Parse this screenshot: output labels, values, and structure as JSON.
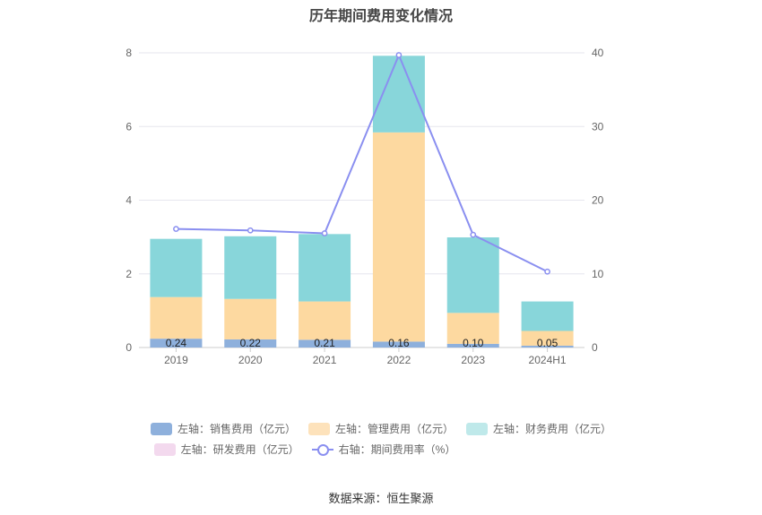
{
  "chart_data": {
    "type": "bar",
    "title": "历年期间费用变化情况",
    "categories": [
      "2019",
      "2020",
      "2021",
      "2022",
      "2023",
      "2024H1"
    ],
    "y_left": {
      "range": [
        0,
        8
      ],
      "ticks": [
        "0",
        "2",
        "4",
        "6",
        "8"
      ]
    },
    "y_right": {
      "range": [
        0,
        40
      ],
      "ticks": [
        "0",
        "10",
        "20",
        "30",
        "40"
      ]
    },
    "stacked": true,
    "series": [
      {
        "name": "左轴：销售费用（亿元）",
        "axis": "left",
        "color": "#8eb0dc",
        "values": [
          0.24,
          0.22,
          0.21,
          0.16,
          0.1,
          0.05
        ],
        "data_labels": [
          "0.24",
          "0.22",
          "0.21",
          "0.16",
          "0.10",
          "0.05"
        ]
      },
      {
        "name": "左轴：管理费用（亿元）",
        "axis": "left",
        "color": "#fdd9a0",
        "values": [
          1.13,
          1.1,
          1.04,
          5.68,
          0.84,
          0.4
        ]
      },
      {
        "name": "左轴：财务费用（亿元）",
        "axis": "left",
        "color": "#88d6da",
        "values": [
          1.58,
          1.7,
          1.83,
          2.08,
          2.05,
          0.8
        ]
      },
      {
        "name": "左轴：研发费用（亿元）",
        "axis": "left",
        "color": "#f3d9ee",
        "values": [
          0,
          0,
          0,
          0,
          0,
          0
        ]
      },
      {
        "name": "右轴：期间费用率（%）",
        "axis": "right",
        "type": "line",
        "color": "#8a8ff0",
        "values": [
          16.1,
          15.9,
          15.5,
          39.7,
          15.3,
          10.3
        ]
      }
    ],
    "grid": true,
    "legend_position": "bottom"
  },
  "source_text": "数据来源：恒生聚源"
}
